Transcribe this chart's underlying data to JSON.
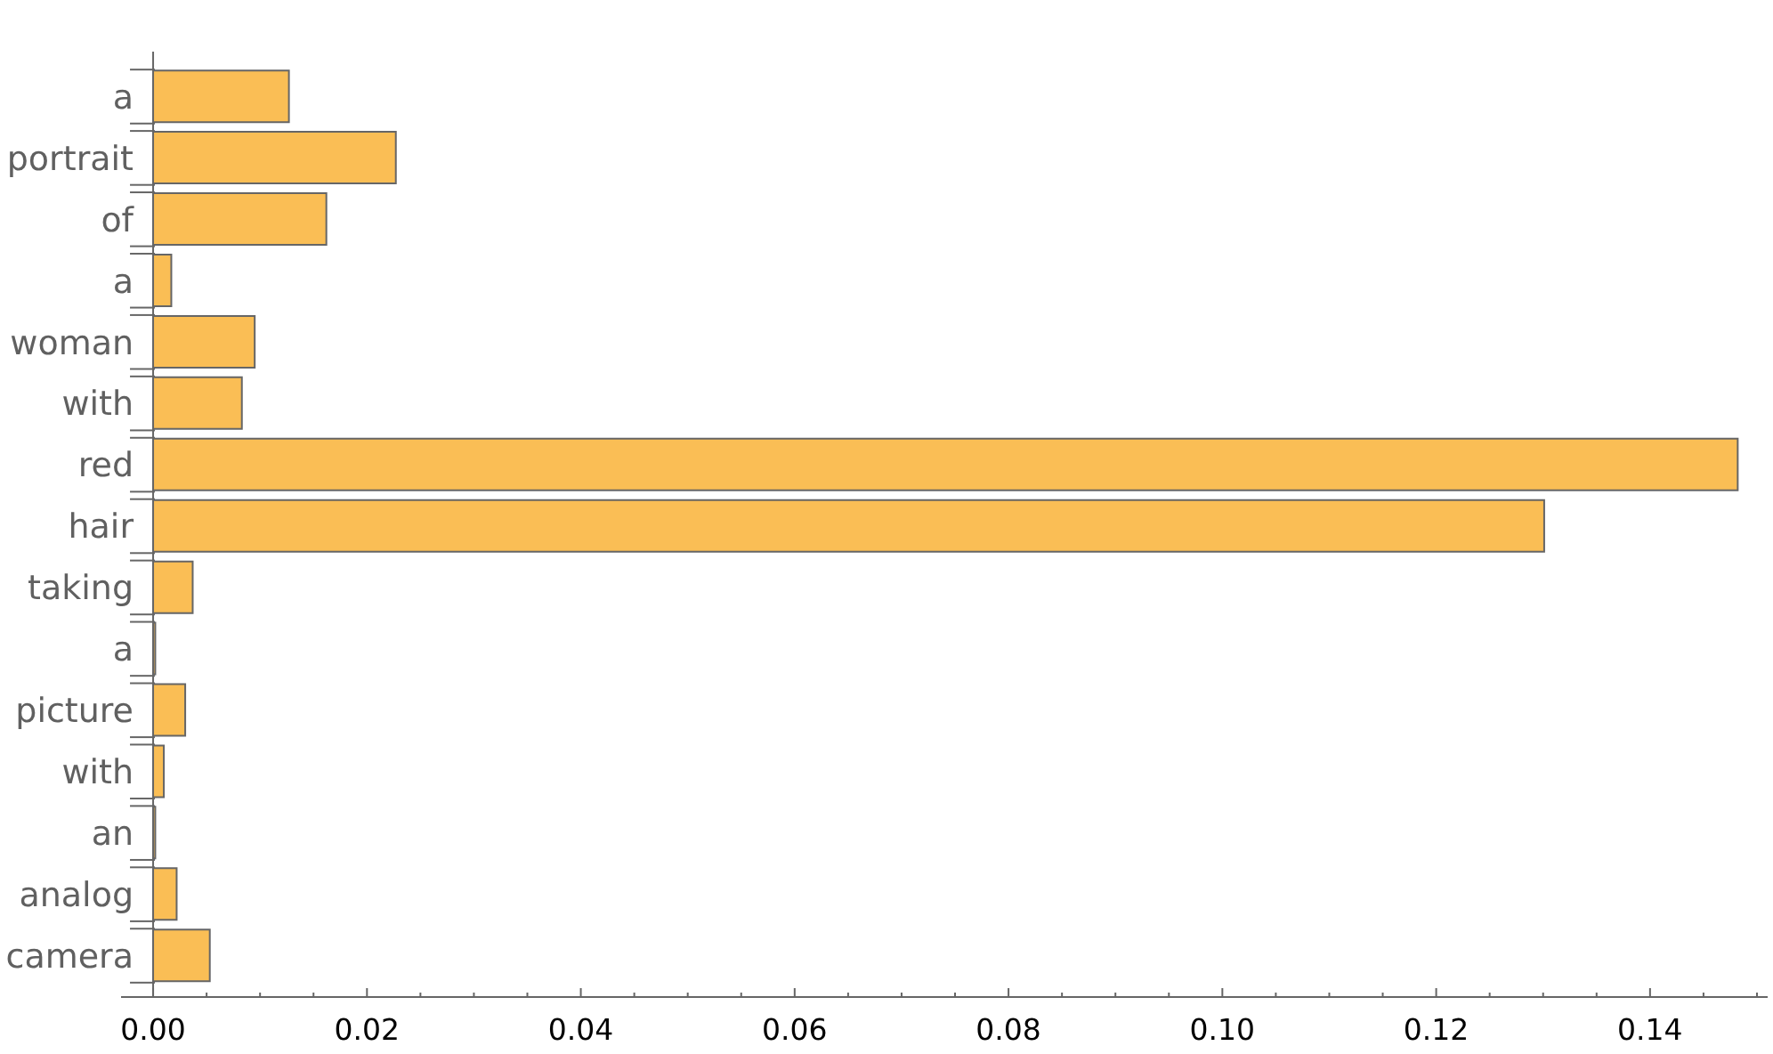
{
  "chart_data": {
    "type": "bar",
    "orientation": "horizontal",
    "categories": [
      "a",
      "portrait",
      "of",
      "a",
      "woman",
      "with",
      "red",
      "hair",
      "taking",
      "a",
      "picture",
      "with",
      "an",
      "analog",
      "camera"
    ],
    "values": [
      0.0127,
      0.0227,
      0.0162,
      0.0017,
      0.0095,
      0.0083,
      0.1482,
      0.1301,
      0.0037,
      0.0002,
      0.003,
      0.001,
      0.0002,
      0.0022,
      0.0053
    ],
    "color": "#fabe55",
    "xlim": [
      -0.003,
      0.151
    ],
    "xticks": [
      {
        "value": 0,
        "label": "0.00"
      },
      {
        "value": 0.005,
        "label": null
      },
      {
        "value": 0.01,
        "label": null
      },
      {
        "value": 0.015,
        "label": null
      },
      {
        "value": 0.02,
        "label": "0.02"
      },
      {
        "value": 0.025,
        "label": null
      },
      {
        "value": 0.03,
        "label": null
      },
      {
        "value": 0.035,
        "label": null
      },
      {
        "value": 0.04,
        "label": "0.04"
      },
      {
        "value": 0.045,
        "label": null
      },
      {
        "value": 0.05,
        "label": null
      },
      {
        "value": 0.055,
        "label": null
      },
      {
        "value": 0.06,
        "label": "0.06"
      },
      {
        "value": 0.065,
        "label": null
      },
      {
        "value": 0.07,
        "label": null
      },
      {
        "value": 0.075,
        "label": null
      },
      {
        "value": 0.08,
        "label": "0.08"
      },
      {
        "value": 0.085,
        "label": null
      },
      {
        "value": 0.09,
        "label": null
      },
      {
        "value": 0.095,
        "label": null
      },
      {
        "value": 0.1,
        "label": "0.10"
      },
      {
        "value": 0.105,
        "label": null
      },
      {
        "value": 0.11,
        "label": null
      },
      {
        "value": 0.115,
        "label": null
      },
      {
        "value": 0.12,
        "label": "0.12"
      },
      {
        "value": 0.125,
        "label": null
      },
      {
        "value": 0.13,
        "label": null
      },
      {
        "value": 0.135,
        "label": null
      },
      {
        "value": 0.14,
        "label": "0.14"
      },
      {
        "value": 0.145,
        "label": null
      },
      {
        "value": 0.15,
        "label": null
      }
    ]
  }
}
